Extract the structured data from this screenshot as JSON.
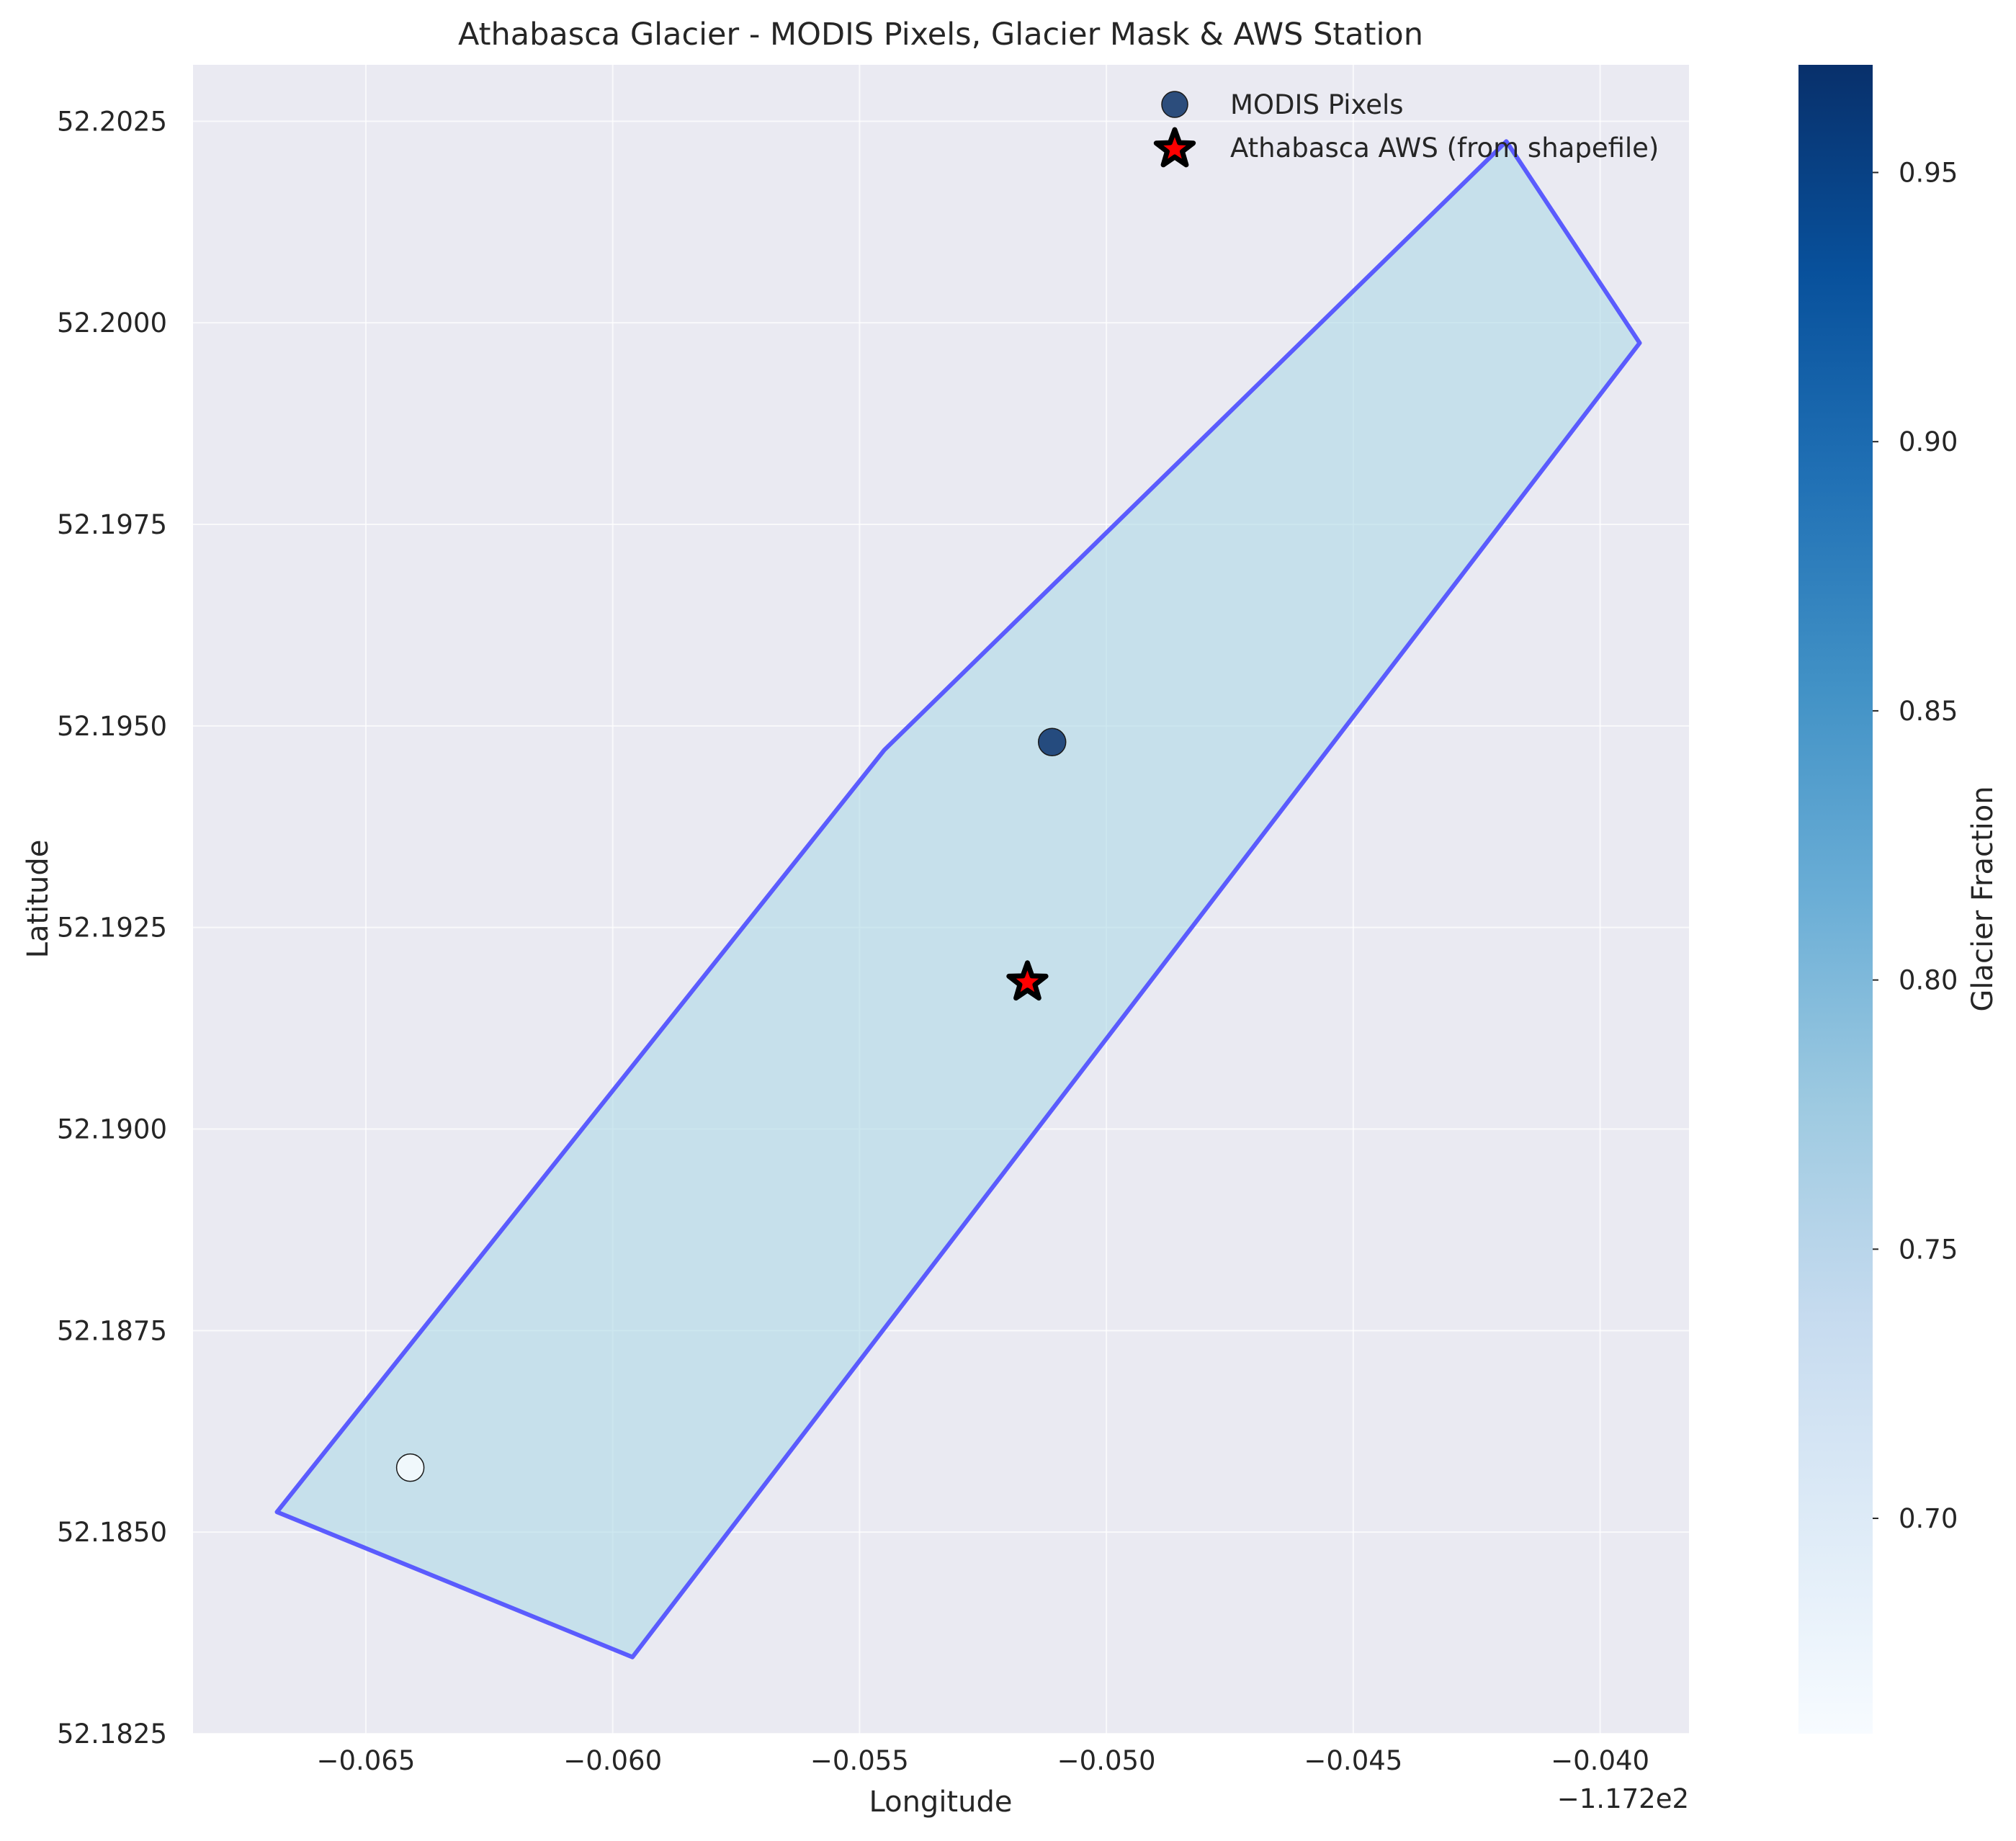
{
  "chart_data": {
    "type": "scatter",
    "title": "Athabasca Glacier - MODIS Pixels, Glacier Mask & AWS Station",
    "xlabel": "Longitude",
    "ylabel": "Latitude",
    "x_offset_label": "−1.172e2",
    "xlim": [
      -0.0685,
      -0.0382
    ],
    "ylim": [
      52.1825,
      52.2032
    ],
    "x_ticks": [
      -0.065,
      -0.06,
      -0.055,
      -0.05,
      -0.045,
      -0.04
    ],
    "x_tick_labels": [
      "−0.065",
      "−0.060",
      "−0.055",
      "−0.050",
      "−0.045",
      "−0.040"
    ],
    "y_ticks": [
      52.1825,
      52.185,
      52.1875,
      52.19,
      52.1925,
      52.195,
      52.1975,
      52.2,
      52.2025
    ],
    "y_tick_labels": [
      "52.1825",
      "52.1850",
      "52.1875",
      "52.1900",
      "52.1925",
      "52.1950",
      "52.1975",
      "52.2000",
      "52.2025"
    ],
    "grid": true,
    "legend_position": "top-right",
    "glacier_mask": {
      "fill_color": "#add8e6",
      "edge_color": "#4d4dff",
      "vertices": [
        [
          -0.0668,
          52.18525
        ],
        [
          -0.0596,
          52.18345
        ],
        [
          -0.0392,
          52.19975
        ],
        [
          -0.0419,
          52.20225
        ],
        [
          -0.0545,
          52.1947
        ]
      ]
    },
    "series": [
      {
        "name": "MODIS Pixels",
        "marker": "circle",
        "points": [
          {
            "x": -0.0511,
            "y": 52.1948,
            "glacier_fraction": 0.97
          },
          {
            "x": -0.0641,
            "y": 52.1858,
            "glacier_fraction": 0.66
          }
        ]
      },
      {
        "name": "Athabasca AWS (from shapefile)",
        "marker": "star",
        "color": "#ff0000",
        "points": [
          {
            "x": -0.0516,
            "y": 52.19182
          }
        ]
      }
    ],
    "colorbar": {
      "label": "Glacier Fraction",
      "colormap": "Blues",
      "min": 0.66,
      "max": 0.97,
      "ticks": [
        0.7,
        0.75,
        0.8,
        0.85,
        0.9,
        0.95
      ],
      "tick_labels": [
        "0.70",
        "0.75",
        "0.80",
        "0.85",
        "0.90",
        "0.95"
      ]
    },
    "colors": {
      "plot_background": "#eaeaf2",
      "grid": "#ffffff",
      "star_fill": "#ff0000",
      "star_edge": "#000000"
    }
  }
}
